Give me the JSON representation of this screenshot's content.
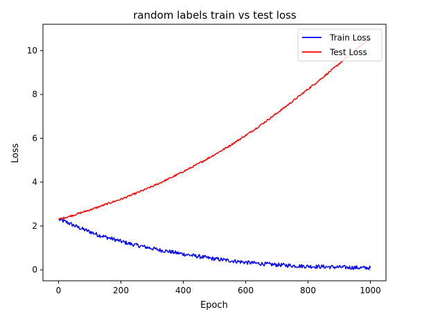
{
  "chart_data": {
    "type": "line",
    "title": "random labels train vs test loss",
    "xlabel": "Epoch",
    "ylabel": "Loss",
    "xlim": [
      -50,
      1050
    ],
    "ylim": [
      -0.5,
      11.2
    ],
    "xticks": [
      0,
      200,
      400,
      600,
      800,
      1000
    ],
    "yticks": [
      0,
      2,
      4,
      6,
      8,
      10
    ],
    "xtick_labels": [
      "0",
      "200",
      "400",
      "600",
      "800",
      "1000"
    ],
    "ytick_labels": [
      "0",
      "2",
      "4",
      "6",
      "8",
      "10"
    ],
    "grid": false,
    "legend_position": "top-right",
    "title_color": "#008000",
    "series": [
      {
        "name": "Train Loss",
        "color": "#0000ff",
        "x": [
          0,
          25,
          50,
          75,
          100,
          125,
          150,
          175,
          200,
          225,
          250,
          275,
          300,
          325,
          350,
          375,
          400,
          425,
          450,
          475,
          500,
          525,
          550,
          575,
          600,
          625,
          650,
          675,
          700,
          725,
          750,
          775,
          800,
          825,
          850,
          875,
          900,
          925,
          950,
          975,
          1000
        ],
        "y": [
          2.3,
          2.18,
          2.02,
          1.87,
          1.74,
          1.6,
          1.5,
          1.4,
          1.3,
          1.2,
          1.12,
          1.05,
          0.98,
          0.9,
          0.85,
          0.78,
          0.72,
          0.66,
          0.61,
          0.55,
          0.5,
          0.46,
          0.42,
          0.38,
          0.34,
          0.31,
          0.28,
          0.25,
          0.23,
          0.21,
          0.19,
          0.17,
          0.16,
          0.15,
          0.14,
          0.13,
          0.12,
          0.11,
          0.1,
          0.09,
          0.09
        ],
        "noise": 0.06
      },
      {
        "name": "Test Loss",
        "color": "#ff0000",
        "x": [
          0,
          25,
          50,
          75,
          100,
          125,
          150,
          175,
          200,
          225,
          250,
          275,
          300,
          325,
          350,
          375,
          400,
          425,
          450,
          475,
          500,
          525,
          550,
          575,
          600,
          625,
          650,
          675,
          700,
          725,
          750,
          775,
          800,
          825,
          850,
          875,
          900,
          925,
          950,
          975,
          1000
        ],
        "y": [
          2.3,
          2.4,
          2.5,
          2.62,
          2.73,
          2.85,
          2.98,
          3.1,
          3.22,
          3.36,
          3.5,
          3.65,
          3.8,
          3.96,
          4.13,
          4.3,
          4.48,
          4.66,
          4.85,
          5.05,
          5.25,
          5.46,
          5.67,
          5.9,
          6.13,
          6.37,
          6.62,
          6.88,
          7.14,
          7.41,
          7.68,
          7.96,
          8.24,
          8.52,
          8.81,
          9.1,
          9.4,
          9.7,
          10.0,
          10.3,
          10.55
        ],
        "noise": 0.04
      }
    ]
  }
}
